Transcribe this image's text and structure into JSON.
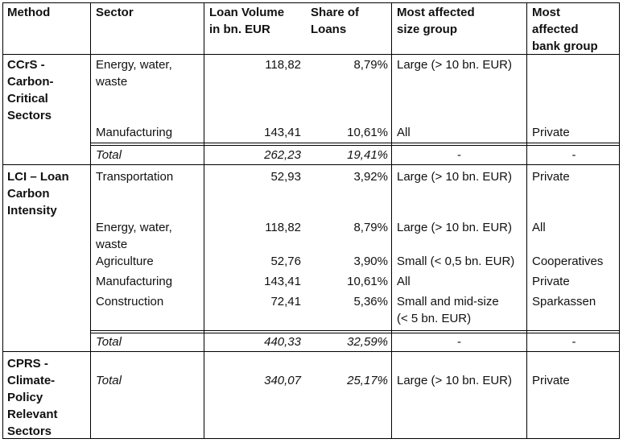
{
  "headers": {
    "method": "Method",
    "sector": "Sector",
    "loan_volume_1": "Loan Volume",
    "loan_volume_2": "in bn. EUR",
    "share_1": "Share of",
    "share_2": "Loans",
    "size_1": "Most affected",
    "size_2": "size group",
    "bank_1": "Most",
    "bank_2": "affected",
    "bank_3": "bank group"
  },
  "ccrs": {
    "method_lines": [
      "CCrS -",
      "Carbon-",
      "Critical",
      "Sectors"
    ],
    "row1": {
      "sector_1": "Energy, water,",
      "sector_2": "waste",
      "volume": "118,82",
      "share": "8,79%",
      "size": "Large (> 10 bn. EUR)",
      "bank": ""
    },
    "row2": {
      "sector": "Manufacturing",
      "volume": "143,41",
      "share": "10,61%",
      "size": "All",
      "bank": "Private"
    },
    "total": {
      "label": "Total",
      "volume": "262,23",
      "share": "19,41%",
      "size": "-",
      "bank": "-"
    }
  },
  "lci": {
    "method_lines": [
      "LCI – Loan",
      "Carbon",
      "Intensity"
    ],
    "row1": {
      "sector": "Transportation",
      "volume": "52,93",
      "share": "3,92%",
      "size": "Large (> 10 bn. EUR)",
      "bank": "Private"
    },
    "row2": {
      "sector_1": "Energy, water,",
      "sector_2": "waste",
      "volume": "118,82",
      "share": "8,79%",
      "size": "Large (> 10 bn. EUR)",
      "bank": "All"
    },
    "row3": {
      "sector": "Agriculture",
      "volume": "52,76",
      "share": "3,90%",
      "size": "Small (< 0,5 bn. EUR)",
      "bank": "Cooperatives"
    },
    "row4": {
      "sector": "Manufacturing",
      "volume": "143,41",
      "share": "10,61%",
      "size": "All",
      "bank": "Private"
    },
    "row5": {
      "sector": "Construction",
      "volume": "72,41",
      "share": "5,36%",
      "size_1": "Small and mid-size",
      "size_2": "(< 5 bn. EUR)",
      "bank": "Sparkassen"
    },
    "total": {
      "label": "Total",
      "volume": "440,33",
      "share": "32,59%",
      "size": "-",
      "bank": "-"
    }
  },
  "cprs": {
    "method_lines": [
      "CPRS -",
      "Climate-",
      "Policy",
      "Relevant",
      "Sectors"
    ],
    "total": {
      "label": "Total",
      "volume": "340,07",
      "share": "25,17%",
      "size": "Large (> 10 bn. EUR)",
      "bank": "Private"
    }
  }
}
